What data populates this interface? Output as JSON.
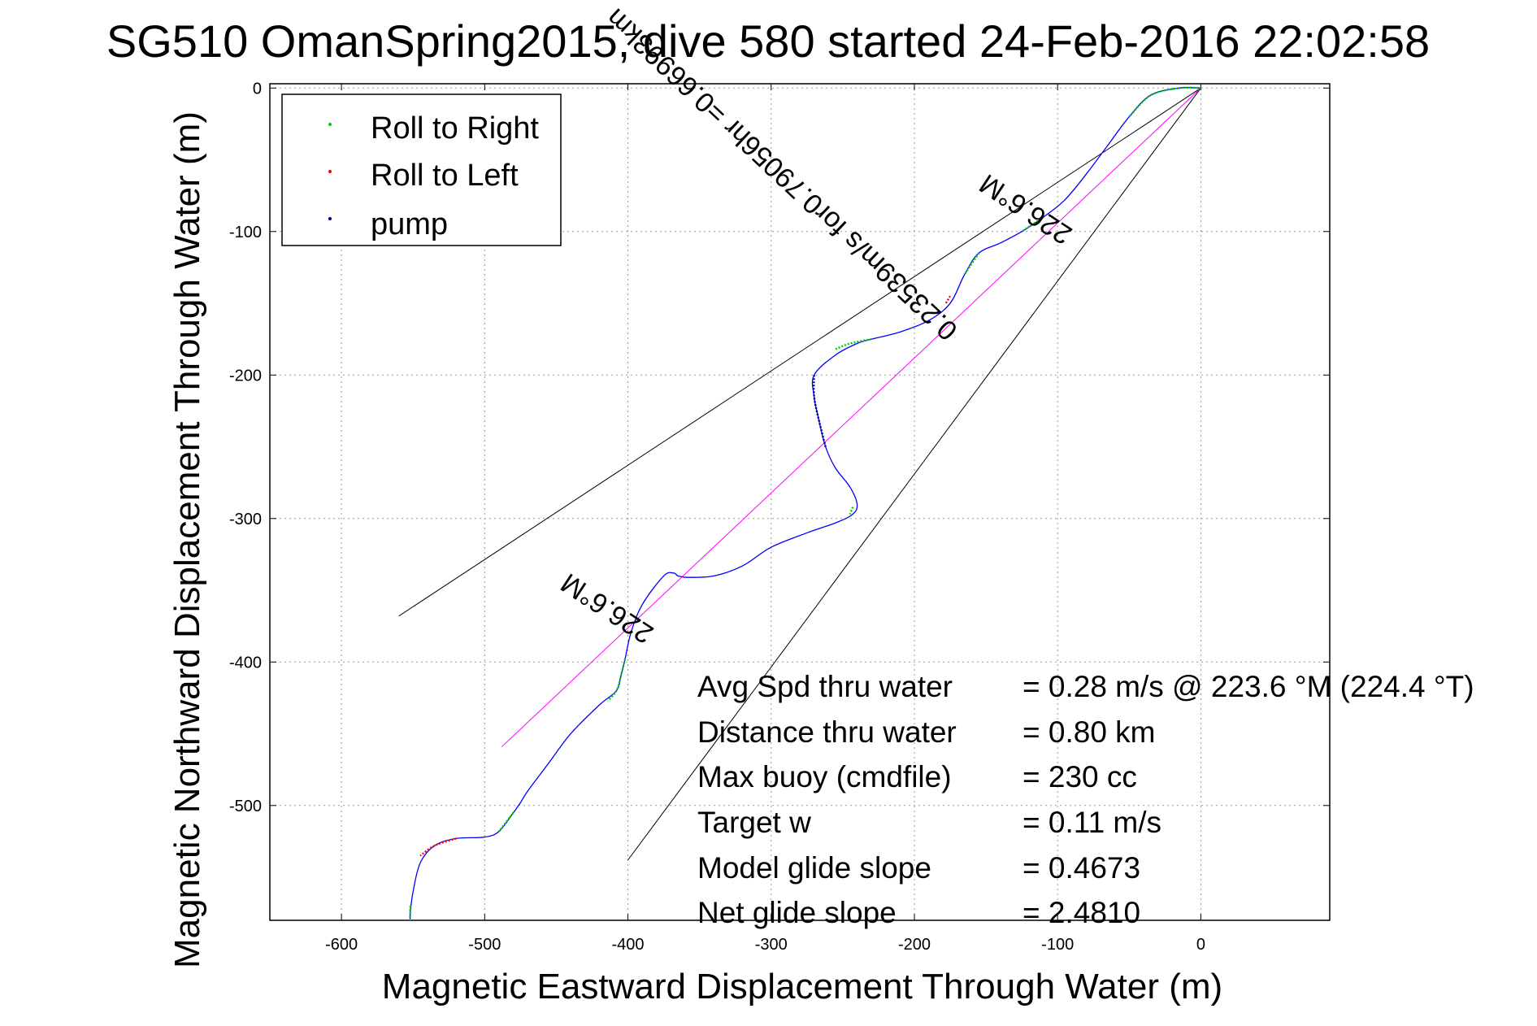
{
  "chart_data": {
    "type": "line",
    "title": "SG510 OmanSpring2015, dive 580 started 24-Feb-2016 22:02:58",
    "xlabel": "Magnetic Eastward Displacement Through Water (m)",
    "ylabel": "Magnetic Northward Displacement Through Water (m)",
    "xlim": [
      -650,
      90
    ],
    "ylim": [
      -580,
      3
    ],
    "x_ticks": [
      -600,
      -500,
      -400,
      -300,
      -200,
      -100,
      0
    ],
    "y_ticks": [
      0,
      -100,
      -200,
      -300,
      -400,
      -500
    ],
    "x_tick_labels": [
      "-600",
      "-500",
      "-400",
      "-300",
      "-200",
      "-100",
      "0"
    ],
    "y_tick_labels": [
      "0",
      "-100",
      "-200",
      "-300",
      "-400",
      "-500"
    ],
    "grid": true,
    "legend_position": "top-left",
    "legend": [
      {
        "label": "Roll to Right",
        "color": "#00cc00"
      },
      {
        "label": "Roll to Left",
        "color": "#ff0000"
      },
      {
        "label": "pump",
        "color": "#000080"
      }
    ],
    "track": {
      "name": "",
      "color": "#0000ff",
      "x": [
        0,
        -15,
        -35,
        -50,
        -65,
        -80,
        -95,
        -110,
        -125,
        -140,
        -155,
        -165,
        -175,
        -190,
        -210,
        -230,
        -240,
        -255,
        -270,
        -270,
        -267,
        -262,
        -255,
        -245,
        -240,
        -243,
        -255,
        -275,
        -300,
        -320,
        -340,
        -358,
        -365,
        -368,
        -375,
        -390,
        -398,
        -402,
        -405,
        -408,
        -420,
        -440,
        -455,
        -470,
        -475,
        -480,
        -490,
        -500,
        -520,
        -535,
        -545,
        -550,
        -552,
        -552
      ],
      "y": [
        0,
        0,
        -5,
        -20,
        -40,
        -60,
        -78,
        -90,
        -100,
        -108,
        -115,
        -130,
        -150,
        -162,
        -170,
        -175,
        -178,
        -186,
        -200,
        -215,
        -230,
        -250,
        -265,
        -278,
        -290,
        -297,
        -303,
        -310,
        -320,
        -333,
        -340,
        -341,
        -340,
        -338,
        -340,
        -360,
        -380,
        -398,
        -410,
        -420,
        -430,
        -450,
        -470,
        -490,
        -498,
        -505,
        -518,
        -522,
        -523,
        -528,
        -540,
        -560,
        -575,
        -580
      ]
    },
    "lines": [
      {
        "name": "",
        "color": "#000000",
        "x": [
          0,
          -560
        ],
        "y": [
          0,
          -368
        ]
      },
      {
        "name": "",
        "color": "#000000",
        "x": [
          0,
          -400
        ],
        "y": [
          0,
          -538
        ]
      },
      {
        "name": "",
        "color": "#ff00ff",
        "x": [
          0,
          -488
        ],
        "y": [
          0,
          -459
        ]
      }
    ],
    "highlight_segments": [
      {
        "label": "Roll to Right",
        "color": "#00cc00",
        "x": [
          0,
          -15,
          -35,
          -50
        ],
        "y": [
          0,
          0,
          -5,
          -20
        ]
      },
      {
        "label": "Roll to Right",
        "color": "#00cc00",
        "x": [
          -110,
          -125
        ],
        "y": [
          -90,
          -100
        ]
      },
      {
        "label": "Roll to Right",
        "color": "#00cc00",
        "x": [
          -155,
          -165
        ],
        "y": [
          -115,
          -130
        ]
      },
      {
        "label": "Roll to Left",
        "color": "#ff0000",
        "x": [
          -175,
          -178
        ],
        "y": [
          -145,
          -150
        ]
      },
      {
        "label": "Roll to Right",
        "color": "#00cc00",
        "x": [
          -230,
          -245,
          -255
        ],
        "y": [
          -175,
          -178,
          -182
        ]
      },
      {
        "label": "pump",
        "color": "#000080",
        "x": [
          -270,
          -270,
          -267,
          -262
        ],
        "y": [
          -200,
          -215,
          -230,
          -250
        ]
      },
      {
        "label": "Roll to Right",
        "color": "#00cc00",
        "x": [
          -243,
          -245
        ],
        "y": [
          -292,
          -297
        ]
      },
      {
        "label": "Roll to Right",
        "color": "#00cc00",
        "x": [
          -402,
          -405,
          -408,
          -414
        ],
        "y": [
          -398,
          -410,
          -420,
          -427
        ]
      },
      {
        "label": "Roll to Right",
        "color": "#00cc00",
        "x": [
          -480,
          -490
        ],
        "y": [
          -505,
          -518
        ]
      },
      {
        "label": "Roll to Left",
        "color": "#ff0000",
        "x": [
          -520,
          -535,
          -545
        ],
        "y": [
          -523,
          -528,
          -535
        ]
      },
      {
        "label": "Roll to Right",
        "color": "#00cc00",
        "x": [
          -552,
          -552
        ],
        "y": [
          -570,
          -580
        ]
      }
    ],
    "annotations": {
      "top_line_label": "226.6°M",
      "center_label": "0.23539m/s for0.79056hr =0.66993km",
      "bottom_line_label": "226.6°M"
    },
    "stats": [
      {
        "label": "Avg Spd thru water",
        "value": "=  0.28 m/s @ 223.6 °M (224.4 °T)"
      },
      {
        "label": "Distance thru water",
        "value": "=  0.80 km"
      },
      {
        "label": "Max buoy (cmdfile)",
        "value": "= 230 cc"
      },
      {
        "label": "Target w",
        "value": "= 0.11 m/s"
      },
      {
        "label": "Model glide slope",
        "value": "= 0.4673"
      },
      {
        "label": "Net glide slope",
        "value": "= 2.4810"
      }
    ]
  }
}
